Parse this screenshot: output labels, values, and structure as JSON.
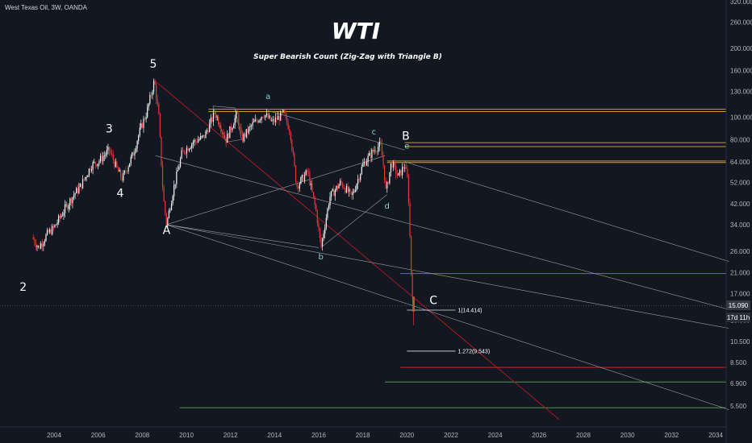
{
  "symbol_label": "West Texas Oil, 3W, OANDA",
  "title": "WTI",
  "subtitle": "Super Bearish Count (Zig-Zag with Triangle B)",
  "current_price": "15.090",
  "countdown": "17d 11h",
  "colors": {
    "background": "#131722",
    "candle_up": "#f5f5f5",
    "candle_down": "#e53935",
    "yellow_level": "#c9a227",
    "red_level": "#c62828",
    "green_level": "#43a047",
    "blue_level": "#5c6bc0",
    "trendline": "#9e9e9e",
    "red_trendline": "#b71c1c"
  },
  "chart_data": {
    "type": "candlestick",
    "title": "WTI",
    "subtitle": "Super Bearish Count (Zig-Zag with Triangle B)",
    "x_axis": {
      "tick_labels": [
        "2004",
        "2006",
        "2008",
        "2010",
        "2012",
        "2014",
        "2016",
        "2018",
        "2020",
        "2022",
        "2024",
        "2026",
        "2028",
        "2030",
        "2032",
        "2034"
      ],
      "range": [
        2002.5,
        2034.6
      ]
    },
    "y_axis": {
      "scale": "log",
      "position": "right",
      "tick_labels": [
        "320.000",
        "260.000",
        "200.000",
        "160.000",
        "130.000",
        "100.000",
        "80.000",
        "64.000",
        "52.000",
        "42.000",
        "34.000",
        "26.000",
        "21.000",
        "17.000",
        "13.000",
        "10.500",
        "8.500",
        "6.900",
        "5.500"
      ],
      "range": [
        4.8,
        320
      ]
    },
    "price_path": [
      [
        2003.0,
        30
      ],
      [
        2003.3,
        27
      ],
      [
        2003.7,
        31
      ],
      [
        2004.0,
        33
      ],
      [
        2004.5,
        40
      ],
      [
        2004.9,
        46
      ],
      [
        2005.2,
        50
      ],
      [
        2005.7,
        62
      ],
      [
        2006.0,
        64
      ],
      [
        2006.5,
        72
      ],
      [
        2006.9,
        58
      ],
      [
        2007.1,
        54
      ],
      [
        2007.6,
        70
      ],
      [
        2007.9,
        88
      ],
      [
        2008.2,
        105
      ],
      [
        2008.55,
        145
      ],
      [
        2008.75,
        100
      ],
      [
        2008.95,
        45
      ],
      [
        2009.1,
        34
      ],
      [
        2009.4,
        48
      ],
      [
        2009.8,
        70
      ],
      [
        2010.3,
        78
      ],
      [
        2010.8,
        82
      ],
      [
        2011.3,
        105
      ],
      [
        2011.8,
        80
      ],
      [
        2012.3,
        104
      ],
      [
        2012.5,
        80
      ],
      [
        2013.0,
        93
      ],
      [
        2013.5,
        104
      ],
      [
        2013.9,
        95
      ],
      [
        2014.4,
        104
      ],
      [
        2014.7,
        88
      ],
      [
        2015.0,
        50
      ],
      [
        2015.5,
        58
      ],
      [
        2015.9,
        38
      ],
      [
        2016.1,
        27
      ],
      [
        2016.5,
        45
      ],
      [
        2017.0,
        52
      ],
      [
        2017.5,
        45
      ],
      [
        2018.0,
        62
      ],
      [
        2018.5,
        72
      ],
      [
        2018.8,
        76
      ],
      [
        2018.95,
        60
      ],
      [
        2019.05,
        47
      ],
      [
        2019.3,
        64
      ],
      [
        2019.6,
        55
      ],
      [
        2019.9,
        62
      ],
      [
        2020.05,
        52
      ],
      [
        2020.2,
        20
      ],
      [
        2020.3,
        15.09
      ]
    ],
    "wave_labels": [
      {
        "text": "2",
        "x": 2002.6,
        "y": 17.5,
        "degree": "major"
      },
      {
        "text": "3",
        "x": 2006.5,
        "y": 86,
        "degree": "major"
      },
      {
        "text": "4",
        "x": 2007.0,
        "y": 45,
        "degree": "major"
      },
      {
        "text": "5",
        "x": 2008.5,
        "y": 165,
        "degree": "major"
      },
      {
        "text": "A",
        "x": 2009.1,
        "y": 31,
        "degree": "major"
      },
      {
        "text": "B",
        "x": 2019.95,
        "y": 80,
        "degree": "major"
      },
      {
        "text": "C",
        "x": 2021.2,
        "y": 15.3,
        "degree": "major"
      },
      {
        "text": "a",
        "x": 2013.7,
        "y": 120,
        "degree": "minor"
      },
      {
        "text": "b",
        "x": 2016.1,
        "y": 24,
        "degree": "minor"
      },
      {
        "text": "c",
        "x": 2018.5,
        "y": 84,
        "degree": "minor"
      },
      {
        "text": "d",
        "x": 2019.1,
        "y": 40,
        "degree": "minor"
      },
      {
        "text": "e",
        "x": 2020.0,
        "y": 73,
        "degree": "minor"
      }
    ],
    "fib_labels": [
      {
        "text": "1(14.414)",
        "price": 14.414
      },
      {
        "text": "1.272(9.543)",
        "price": 9.543
      }
    ],
    "horizontal_levels": [
      {
        "price": 108.5,
        "color": "yellow"
      },
      {
        "price": 106.0,
        "color": "yellow"
      },
      {
        "price": 77.5,
        "color": "yellow"
      },
      {
        "price": 74.5,
        "color": "yellow"
      },
      {
        "price": 64.5,
        "color": "yellow"
      },
      {
        "price": 63.5,
        "color": "yellow"
      },
      {
        "price": 20.8,
        "color": "blue"
      },
      {
        "price": 8.1,
        "color": "red"
      },
      {
        "price": 7.0,
        "color": "green"
      },
      {
        "price": 5.4,
        "color": "green"
      }
    ],
    "grid": false
  }
}
